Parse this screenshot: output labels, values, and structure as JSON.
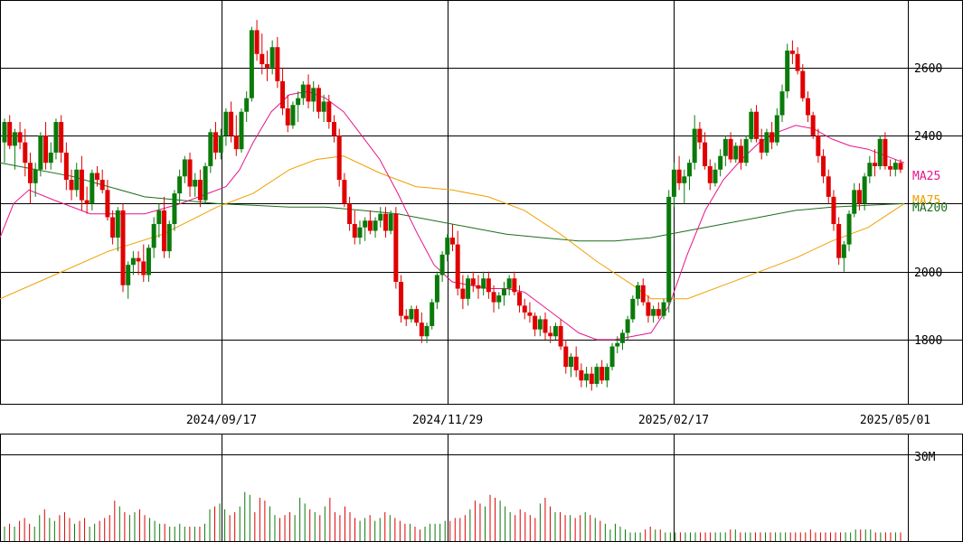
{
  "chart_data": {
    "type": "candlestick",
    "price_ticks": [
      1800,
      2000,
      2200,
      2400,
      2600
    ],
    "price_tick_labels": [
      "1800",
      "2000",
      "2400",
      "2600"
    ],
    "date_labels": [
      "2024/09/17",
      "2024/11/29",
      "2025/02/17",
      "2025/05/01"
    ],
    "volume_tick_label": "30M",
    "volume_tick_value": 30000000,
    "legend": [
      {
        "label": "MA25",
        "color": "#e6158c"
      },
      {
        "label": "MA75",
        "color": "#f0a000"
      },
      {
        "label": "MA200",
        "color": "#1c6e1c"
      }
    ],
    "up_color": "#0a7a0a",
    "down_color": "#e00000",
    "candles": [
      [
        2380,
        2450,
        2320,
        2440
      ],
      [
        2440,
        2460,
        2360,
        2370
      ],
      [
        2370,
        2420,
        2300,
        2410
      ],
      [
        2410,
        2440,
        2360,
        2380
      ],
      [
        2380,
        2420,
        2280,
        2320
      ],
      [
        2320,
        2350,
        2200,
        2260
      ],
      [
        2260,
        2320,
        2220,
        2300
      ],
      [
        2300,
        2410,
        2280,
        2400
      ],
      [
        2400,
        2440,
        2300,
        2320
      ],
      [
        2320,
        2380,
        2300,
        2350
      ],
      [
        2350,
        2450,
        2330,
        2440
      ],
      [
        2440,
        2460,
        2320,
        2350
      ],
      [
        2350,
        2380,
        2240,
        2270
      ],
      [
        2270,
        2300,
        2210,
        2240
      ],
      [
        2240,
        2320,
        2220,
        2300
      ],
      [
        2300,
        2340,
        2180,
        2210
      ],
      [
        2210,
        2250,
        2170,
        2200
      ],
      [
        2200,
        2300,
        2180,
        2290
      ],
      [
        2290,
        2310,
        2250,
        2270
      ],
      [
        2270,
        2300,
        2230,
        2240
      ],
      [
        2240,
        2270,
        2150,
        2160
      ],
      [
        2160,
        2180,
        2080,
        2100
      ],
      [
        2100,
        2190,
        2060,
        2180
      ],
      [
        2180,
        2200,
        1940,
        1960
      ],
      [
        1960,
        2030,
        1920,
        2020
      ],
      [
        2020,
        2060,
        1990,
        2040
      ],
      [
        2040,
        2060,
        1990,
        2030
      ],
      [
        2030,
        2080,
        1970,
        1990
      ],
      [
        1990,
        2080,
        1970,
        2070
      ],
      [
        2070,
        2160,
        2040,
        2140
      ],
      [
        2140,
        2200,
        2100,
        2180
      ],
      [
        2180,
        2220,
        2040,
        2060
      ],
      [
        2060,
        2150,
        2040,
        2140
      ],
      [
        2140,
        2240,
        2120,
        2230
      ],
      [
        2230,
        2300,
        2200,
        2280
      ],
      [
        2280,
        2340,
        2260,
        2330
      ],
      [
        2330,
        2350,
        2220,
        2250
      ],
      [
        2250,
        2290,
        2220,
        2270
      ],
      [
        2270,
        2300,
        2190,
        2210
      ],
      [
        2210,
        2320,
        2200,
        2310
      ],
      [
        2310,
        2420,
        2290,
        2410
      ],
      [
        2410,
        2440,
        2330,
        2350
      ],
      [
        2350,
        2420,
        2330,
        2400
      ],
      [
        2400,
        2480,
        2370,
        2470
      ],
      [
        2470,
        2500,
        2380,
        2400
      ],
      [
        2400,
        2460,
        2340,
        2360
      ],
      [
        2360,
        2480,
        2350,
        2470
      ],
      [
        2470,
        2530,
        2440,
        2510
      ],
      [
        2510,
        2720,
        2500,
        2710
      ],
      [
        2710,
        2740,
        2620,
        2640
      ],
      [
        2640,
        2700,
        2580,
        2610
      ],
      [
        2610,
        2650,
        2560,
        2600
      ],
      [
        2600,
        2680,
        2580,
        2660
      ],
      [
        2660,
        2690,
        2540,
        2560
      ],
      [
        2560,
        2600,
        2460,
        2480
      ],
      [
        2480,
        2520,
        2410,
        2430
      ],
      [
        2430,
        2500,
        2420,
        2490
      ],
      [
        2490,
        2530,
        2440,
        2510
      ],
      [
        2510,
        2560,
        2490,
        2550
      ],
      [
        2550,
        2580,
        2480,
        2500
      ],
      [
        2500,
        2560,
        2470,
        2540
      ],
      [
        2540,
        2550,
        2450,
        2470
      ],
      [
        2470,
        2520,
        2440,
        2500
      ],
      [
        2500,
        2520,
        2420,
        2440
      ],
      [
        2440,
        2460,
        2380,
        2400
      ],
      [
        2400,
        2420,
        2250,
        2270
      ],
      [
        2270,
        2290,
        2190,
        2200
      ],
      [
        2200,
        2220,
        2120,
        2140
      ],
      [
        2140,
        2180,
        2080,
        2100
      ],
      [
        2100,
        2150,
        2080,
        2130
      ],
      [
        2130,
        2160,
        2090,
        2150
      ],
      [
        2150,
        2180,
        2110,
        2120
      ],
      [
        2120,
        2160,
        2100,
        2150
      ],
      [
        2150,
        2190,
        2130,
        2170
      ],
      [
        2170,
        2190,
        2100,
        2120
      ],
      [
        2120,
        2180,
        2110,
        2170
      ],
      [
        2170,
        2190,
        1950,
        1970
      ],
      [
        1970,
        1990,
        1850,
        1870
      ],
      [
        1870,
        1890,
        1840,
        1860
      ],
      [
        1860,
        1900,
        1850,
        1890
      ],
      [
        1890,
        1900,
        1840,
        1850
      ],
      [
        1850,
        1880,
        1790,
        1810
      ],
      [
        1810,
        1850,
        1790,
        1840
      ],
      [
        1840,
        1920,
        1830,
        1910
      ],
      [
        1910,
        2000,
        1890,
        1990
      ],
      [
        1990,
        2060,
        1970,
        2050
      ],
      [
        2050,
        2110,
        2030,
        2100
      ],
      [
        2100,
        2140,
        2060,
        2080
      ],
      [
        2080,
        2120,
        1930,
        1950
      ],
      [
        1950,
        1990,
        1890,
        1920
      ],
      [
        1920,
        1990,
        1900,
        1980
      ],
      [
        1980,
        2000,
        1940,
        1960
      ],
      [
        1960,
        1990,
        1920,
        1950
      ],
      [
        1950,
        2000,
        1930,
        1980
      ],
      [
        1980,
        2000,
        1920,
        1940
      ],
      [
        1940,
        1960,
        1880,
        1910
      ],
      [
        1910,
        1940,
        1890,
        1930
      ],
      [
        1930,
        1970,
        1900,
        1950
      ],
      [
        1950,
        1990,
        1930,
        1980
      ],
      [
        1980,
        2000,
        1930,
        1940
      ],
      [
        1940,
        1960,
        1880,
        1900
      ],
      [
        1900,
        1920,
        1860,
        1880
      ],
      [
        1880,
        1910,
        1850,
        1870
      ],
      [
        1870,
        1880,
        1810,
        1830
      ],
      [
        1830,
        1870,
        1810,
        1860
      ],
      [
        1860,
        1880,
        1800,
        1820
      ],
      [
        1820,
        1840,
        1790,
        1810
      ],
      [
        1810,
        1850,
        1800,
        1840
      ],
      [
        1840,
        1860,
        1770,
        1780
      ],
      [
        1780,
        1800,
        1700,
        1720
      ],
      [
        1720,
        1760,
        1690,
        1750
      ],
      [
        1750,
        1780,
        1690,
        1710
      ],
      [
        1710,
        1730,
        1660,
        1680
      ],
      [
        1680,
        1720,
        1660,
        1700
      ],
      [
        1700,
        1720,
        1650,
        1670
      ],
      [
        1670,
        1730,
        1660,
        1720
      ],
      [
        1720,
        1740,
        1670,
        1680
      ],
      [
        1680,
        1730,
        1660,
        1720
      ],
      [
        1720,
        1790,
        1710,
        1780
      ],
      [
        1780,
        1810,
        1760,
        1790
      ],
      [
        1790,
        1830,
        1770,
        1820
      ],
      [
        1820,
        1870,
        1800,
        1860
      ],
      [
        1860,
        1930,
        1850,
        1920
      ],
      [
        1920,
        1970,
        1900,
        1960
      ],
      [
        1960,
        1980,
        1900,
        1910
      ],
      [
        1910,
        1930,
        1850,
        1870
      ],
      [
        1870,
        1900,
        1850,
        1890
      ],
      [
        1890,
        1910,
        1860,
        1870
      ],
      [
        1870,
        1920,
        1860,
        1910
      ],
      [
        1910,
        2240,
        1880,
        2220
      ],
      [
        2220,
        2320,
        2190,
        2300
      ],
      [
        2300,
        2340,
        2240,
        2260
      ],
      [
        2260,
        2300,
        2200,
        2280
      ],
      [
        2280,
        2330,
        2240,
        2320
      ],
      [
        2320,
        2460,
        2300,
        2420
      ],
      [
        2420,
        2440,
        2360,
        2380
      ],
      [
        2380,
        2410,
        2300,
        2310
      ],
      [
        2310,
        2330,
        2240,
        2260
      ],
      [
        2260,
        2320,
        2250,
        2300
      ],
      [
        2300,
        2360,
        2280,
        2340
      ],
      [
        2340,
        2400,
        2310,
        2390
      ],
      [
        2390,
        2410,
        2320,
        2330
      ],
      [
        2330,
        2380,
        2320,
        2370
      ],
      [
        2370,
        2390,
        2300,
        2320
      ],
      [
        2320,
        2400,
        2310,
        2390
      ],
      [
        2390,
        2480,
        2380,
        2470
      ],
      [
        2470,
        2490,
        2380,
        2390
      ],
      [
        2390,
        2420,
        2330,
        2350
      ],
      [
        2350,
        2420,
        2340,
        2410
      ],
      [
        2410,
        2440,
        2360,
        2380
      ],
      [
        2380,
        2480,
        2370,
        2460
      ],
      [
        2460,
        2550,
        2440,
        2530
      ],
      [
        2530,
        2670,
        2510,
        2650
      ],
      [
        2650,
        2680,
        2610,
        2640
      ],
      [
        2640,
        2660,
        2580,
        2590
      ],
      [
        2590,
        2610,
        2500,
        2510
      ],
      [
        2510,
        2530,
        2440,
        2460
      ],
      [
        2460,
        2470,
        2390,
        2400
      ],
      [
        2400,
        2420,
        2320,
        2340
      ],
      [
        2340,
        2360,
        2260,
        2280
      ],
      [
        2280,
        2300,
        2200,
        2220
      ],
      [
        2220,
        2240,
        2120,
        2140
      ],
      [
        2140,
        2160,
        2020,
        2040
      ],
      [
        2040,
        2090,
        2000,
        2080
      ],
      [
        2080,
        2180,
        2060,
        2170
      ],
      [
        2170,
        2260,
        2160,
        2240
      ],
      [
        2240,
        2260,
        2180,
        2200
      ],
      [
        2200,
        2290,
        2180,
        2280
      ],
      [
        2280,
        2340,
        2260,
        2320
      ],
      [
        2320,
        2360,
        2280,
        2310
      ],
      [
        2310,
        2400,
        2300,
        2390
      ],
      [
        2390,
        2410,
        2300,
        2310
      ],
      [
        2310,
        2330,
        2280,
        2300
      ],
      [
        2300,
        2330,
        2280,
        2320
      ],
      [
        2320,
        2330,
        2290,
        2300
      ]
    ],
    "ma25": [
      [
        0,
        2100
      ],
      [
        15,
        2200
      ],
      [
        32,
        2240
      ],
      [
        60,
        2210
      ],
      [
        100,
        2170
      ],
      [
        160,
        2170
      ],
      [
        200,
        2200
      ],
      [
        230,
        2230
      ],
      [
        250,
        2250
      ],
      [
        265,
        2300
      ],
      [
        280,
        2380
      ],
      [
        300,
        2470
      ],
      [
        320,
        2520
      ],
      [
        340,
        2530
      ],
      [
        360,
        2510
      ],
      [
        380,
        2470
      ],
      [
        400,
        2400
      ],
      [
        420,
        2330
      ],
      [
        440,
        2230
      ],
      [
        460,
        2120
      ],
      [
        480,
        2020
      ],
      [
        500,
        1970
      ],
      [
        520,
        1960
      ],
      [
        540,
        1950
      ],
      [
        560,
        1950
      ],
      [
        580,
        1940
      ],
      [
        600,
        1900
      ],
      [
        620,
        1860
      ],
      [
        640,
        1820
      ],
      [
        660,
        1800
      ],
      [
        680,
        1800
      ],
      [
        700,
        1810
      ],
      [
        720,
        1820
      ],
      [
        740,
        1900
      ],
      [
        760,
        2050
      ],
      [
        780,
        2180
      ],
      [
        800,
        2270
      ],
      [
        820,
        2330
      ],
      [
        840,
        2380
      ],
      [
        860,
        2410
      ],
      [
        880,
        2430
      ],
      [
        900,
        2420
      ],
      [
        920,
        2390
      ],
      [
        940,
        2370
      ],
      [
        960,
        2360
      ],
      [
        980,
        2340
      ],
      [
        1000,
        2320
      ]
    ],
    "ma75": [
      [
        0,
        1920
      ],
      [
        60,
        1990
      ],
      [
        120,
        2060
      ],
      [
        180,
        2110
      ],
      [
        240,
        2190
      ],
      [
        280,
        2230
      ],
      [
        320,
        2300
      ],
      [
        350,
        2330
      ],
      [
        380,
        2340
      ],
      [
        420,
        2290
      ],
      [
        460,
        2250
      ],
      [
        500,
        2240
      ],
      [
        540,
        2220
      ],
      [
        580,
        2180
      ],
      [
        620,
        2110
      ],
      [
        660,
        2030
      ],
      [
        700,
        1960
      ],
      [
        720,
        1920
      ],
      [
        760,
        1920
      ],
      [
        800,
        1960
      ],
      [
        840,
        2000
      ],
      [
        880,
        2040
      ],
      [
        920,
        2090
      ],
      [
        960,
        2130
      ],
      [
        1000,
        2200
      ]
    ],
    "ma200": [
      [
        0,
        2320
      ],
      [
        40,
        2300
      ],
      [
        80,
        2280
      ],
      [
        120,
        2250
      ],
      [
        160,
        2220
      ],
      [
        200,
        2210
      ],
      [
        240,
        2200
      ],
      [
        280,
        2195
      ],
      [
        320,
        2190
      ],
      [
        360,
        2190
      ],
      [
        400,
        2180
      ],
      [
        440,
        2170
      ],
      [
        480,
        2150
      ],
      [
        520,
        2130
      ],
      [
        560,
        2110
      ],
      [
        600,
        2100
      ],
      [
        640,
        2090
      ],
      [
        680,
        2090
      ],
      [
        720,
        2100
      ],
      [
        760,
        2120
      ],
      [
        800,
        2140
      ],
      [
        840,
        2160
      ],
      [
        880,
        2180
      ],
      [
        920,
        2190
      ],
      [
        960,
        2195
      ],
      [
        1000,
        2200
      ]
    ],
    "volumes": [
      5,
      6,
      5,
      7,
      8,
      6,
      5,
      9,
      11,
      8,
      7,
      9,
      10,
      8,
      6,
      7,
      8,
      5,
      6,
      7,
      8,
      9,
      14,
      12,
      10,
      9,
      10,
      11,
      9,
      8,
      7,
      6,
      6,
      5,
      5,
      6,
      5,
      5,
      5,
      5,
      6,
      11,
      12,
      13,
      11,
      9,
      10,
      12,
      17,
      16,
      10,
      15,
      14,
      12,
      9,
      8,
      9,
      10,
      9,
      15,
      13,
      11,
      10,
      9,
      12,
      15,
      10,
      9,
      12,
      10,
      8,
      7,
      8,
      9,
      7,
      8,
      10,
      9,
      8,
      7,
      6,
      6,
      5,
      4,
      5,
      6,
      6,
      6,
      7,
      7,
      8,
      8,
      9,
      11,
      14,
      13,
      12,
      16,
      15,
      14,
      12,
      10,
      9,
      11,
      10,
      9,
      8,
      13,
      15,
      12,
      10,
      10,
      9,
      9,
      8,
      9,
      10,
      9,
      8,
      7,
      6,
      4,
      6,
      5,
      4,
      3,
      3,
      3,
      4,
      5,
      4,
      4,
      3,
      3,
      3,
      3,
      3,
      3,
      3,
      3,
      3,
      3,
      3,
      3,
      3,
      4,
      4,
      3,
      3,
      3,
      3,
      3,
      3,
      3,
      3,
      3,
      3,
      3,
      3,
      3,
      3,
      4,
      3,
      3,
      3,
      3,
      3,
      3,
      3,
      3,
      4,
      4,
      4,
      4,
      3,
      3,
      3,
      3,
      3,
      3
    ]
  }
}
